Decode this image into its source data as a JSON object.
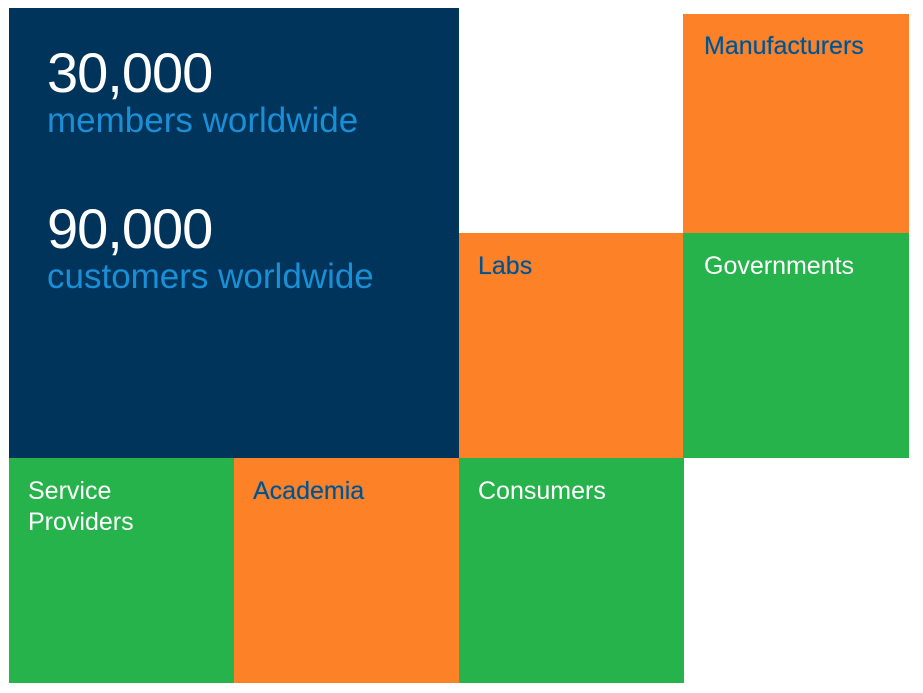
{
  "stats": [
    {
      "number": "30,000",
      "label": "members worldwide"
    },
    {
      "number": "90,000",
      "label": "customers worldwide"
    }
  ],
  "segments": {
    "manufacturers": "Manufacturers",
    "labs": "Labs",
    "governments": "Governments",
    "service_providers_line1": "Service",
    "service_providers_line2": "Providers",
    "academia": "Academia",
    "consumers": "Consumers"
  },
  "colors": {
    "navy": "#01345b",
    "blue_text": "#1a8fd6",
    "orange": "#fc8127",
    "green": "#27b34c"
  }
}
